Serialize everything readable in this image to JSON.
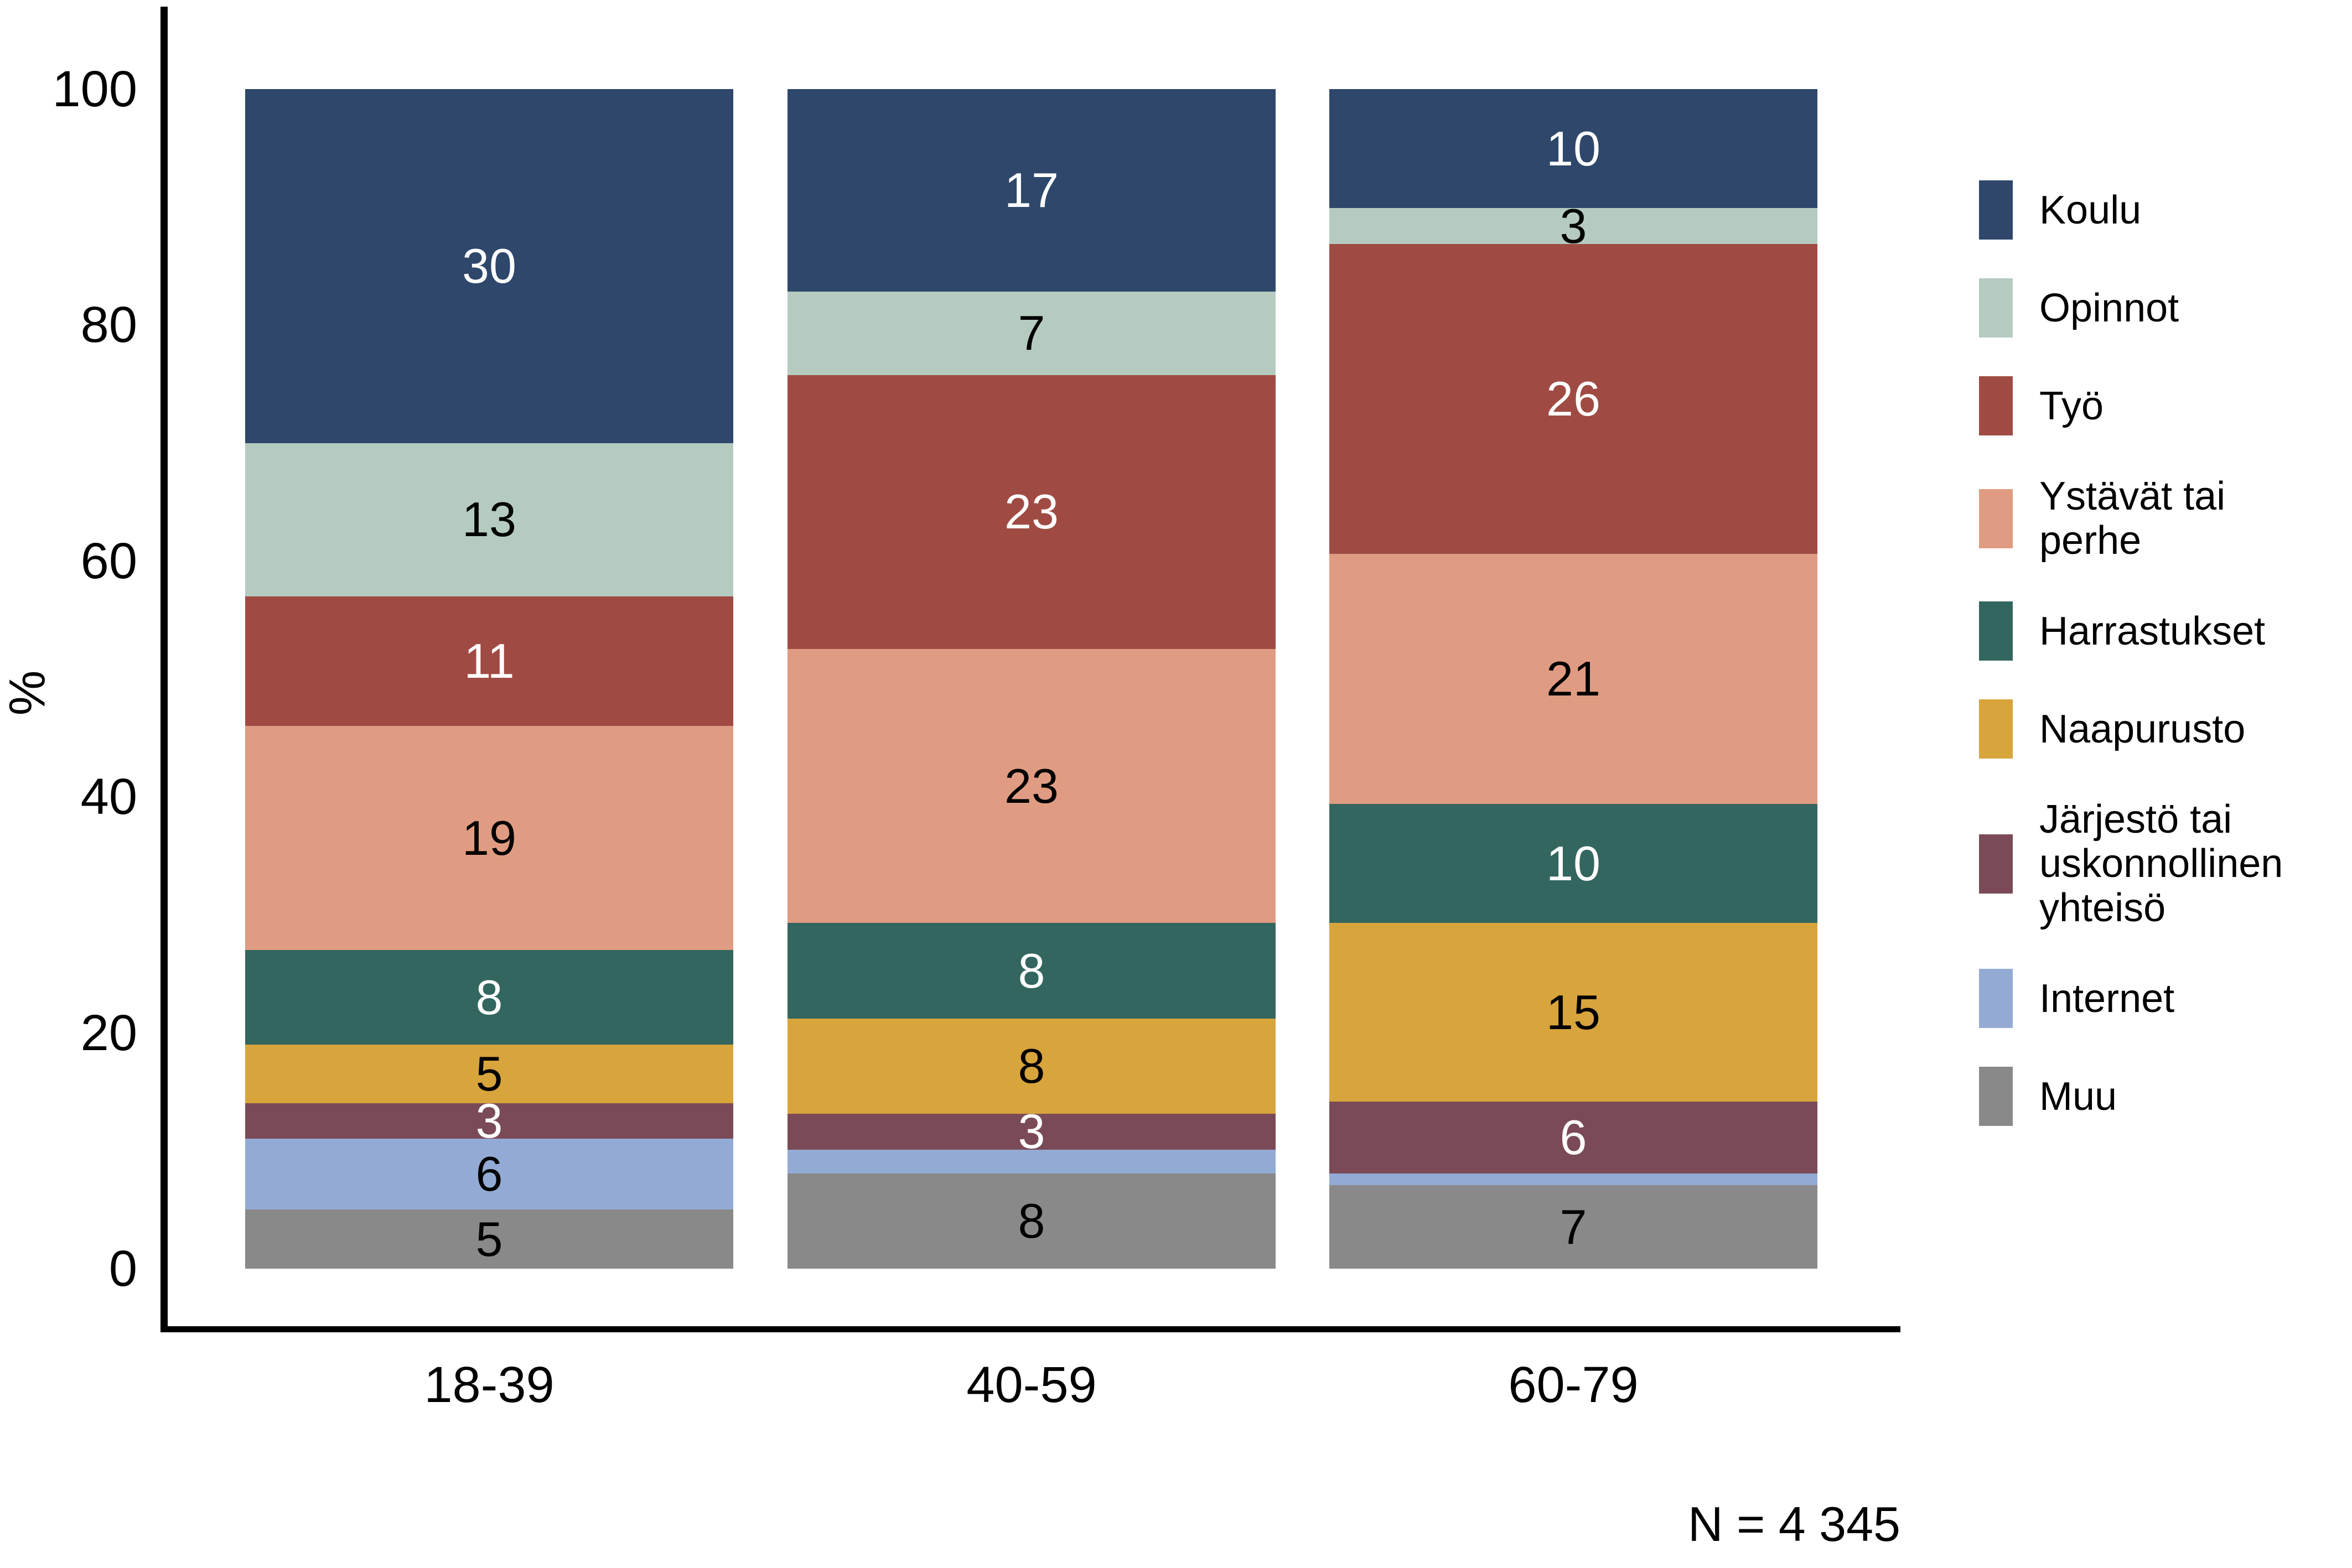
{
  "chart_data": {
    "type": "bar",
    "stacked": true,
    "orientation": "vertical",
    "title": "",
    "ylabel": "%",
    "xlabel": "",
    "ylim": [
      0,
      100
    ],
    "yticks": [
      0,
      20,
      40,
      60,
      80,
      100
    ],
    "grid": false,
    "legend_position": "right",
    "categories": [
      "18-39",
      "40-59",
      "60-79"
    ],
    "series": [
      {
        "name": "Koulu",
        "legend_label": "Koulu",
        "color": "#2E476B",
        "label_color": "#FFFFFF",
        "values": [
          30,
          17,
          10
        ],
        "labels": [
          "30",
          "17",
          "10"
        ]
      },
      {
        "name": "Opinnot",
        "legend_label": "Opinnot",
        "color": "#B5CBC0",
        "label_color": "#000000",
        "values": [
          13,
          7,
          3
        ],
        "labels": [
          "13",
          "7",
          "3"
        ]
      },
      {
        "name": "Työ",
        "legend_label": "Työ",
        "color": "#9F4B43",
        "label_color": "#FFFFFF",
        "values": [
          11,
          23,
          26
        ],
        "labels": [
          "11",
          "23",
          "26"
        ]
      },
      {
        "name": "Ystävät tai perhe",
        "legend_label": "Ystävät tai\nperhe",
        "color": "#E09C82",
        "label_color": "#000000",
        "values": [
          19,
          23,
          21
        ],
        "labels": [
          "19",
          "23",
          "21"
        ]
      },
      {
        "name": "Harrastukset",
        "legend_label": "Harrastukset",
        "color": "#33665F",
        "label_color": "#FFFFFF",
        "values": [
          8,
          8,
          10
        ],
        "labels": [
          "8",
          "8",
          "10"
        ]
      },
      {
        "name": "Naapurusto",
        "legend_label": "Naapurusto",
        "color": "#D8A43C",
        "label_color": "#000000",
        "values": [
          5,
          8,
          15
        ],
        "labels": [
          "5",
          "8",
          "15"
        ]
      },
      {
        "name": "Järjestö tai uskonnollinen yhteisö",
        "legend_label": "Järjestö tai\nuskonnollinen\nyhteisö",
        "color": "#7A4B57",
        "label_color": "#FFFFFF",
        "values": [
          3,
          3,
          6
        ],
        "labels": [
          "3",
          "3",
          "6"
        ]
      },
      {
        "name": "Internet",
        "legend_label": "Internet",
        "color": "#93ABD4",
        "label_color": "#000000",
        "values": [
          6,
          2,
          1
        ],
        "labels": [
          "6",
          "",
          ""
        ]
      },
      {
        "name": "Muu",
        "legend_label": "Muu",
        "color": "#898989",
        "label_color": "#000000",
        "values": [
          5,
          8,
          7
        ],
        "labels": [
          "5",
          "8",
          "7"
        ]
      }
    ],
    "sample_size_note": "N = 4 345"
  }
}
